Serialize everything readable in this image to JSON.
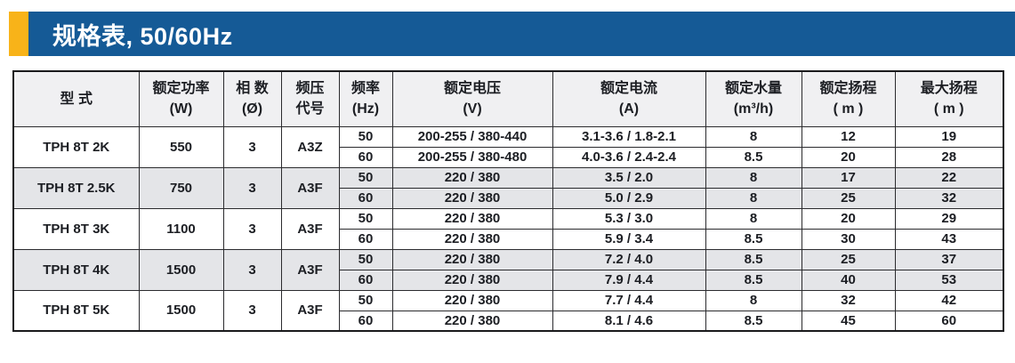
{
  "title_bar": {
    "title": "规格表, 50/60Hz"
  },
  "colors": {
    "bar_blue": "#155A96",
    "accent_yellow": "#F8B319",
    "header_bg": "#F0F0F2",
    "row_alt": "#E4E5E8",
    "border": "#2B2B2E",
    "border_outer": "#1A1A1C",
    "text": "#1C1E23"
  },
  "table": {
    "headers": [
      {
        "line1": "型 式",
        "line2": ""
      },
      {
        "line1": "额定功率",
        "line2": "(W)"
      },
      {
        "line1": "相 数",
        "line2": "(Ø)"
      },
      {
        "line1": "频压",
        "line2": "代号"
      },
      {
        "line1": "频率",
        "line2": "(Hz)"
      },
      {
        "line1": "额定电压",
        "line2": "(V)"
      },
      {
        "line1": "额定电流",
        "line2": "(A)"
      },
      {
        "line1": "额定水量",
        "line2": "(m³/h)"
      },
      {
        "line1": "额定扬程",
        "line2": "( m )"
      },
      {
        "line1": "最大扬程",
        "line2": "( m )"
      }
    ],
    "rows": [
      {
        "model": "TPH 8T 2K",
        "power": "550",
        "phases": "3",
        "code": "A3Z",
        "freqs": [
          {
            "hz": "50",
            "voltage": "200-255 / 380-440",
            "current": "3.1-3.6 / 1.8-2.1",
            "flow": "8",
            "head": "12",
            "max_head": "19"
          },
          {
            "hz": "60",
            "voltage": "200-255 / 380-480",
            "current": "4.0-3.6 / 2.4-2.4",
            "flow": "8.5",
            "head": "20",
            "max_head": "28"
          }
        ]
      },
      {
        "model": "TPH 8T 2.5K",
        "power": "750",
        "phases": "3",
        "code": "A3F",
        "freqs": [
          {
            "hz": "50",
            "voltage": "220 / 380",
            "current": "3.5 / 2.0",
            "flow": "8",
            "head": "17",
            "max_head": "22"
          },
          {
            "hz": "60",
            "voltage": "220 / 380",
            "current": "5.0 / 2.9",
            "flow": "8",
            "head": "25",
            "max_head": "32"
          }
        ]
      },
      {
        "model": "TPH 8T 3K",
        "power": "1100",
        "phases": "3",
        "code": "A3F",
        "freqs": [
          {
            "hz": "50",
            "voltage": "220 / 380",
            "current": "5.3 / 3.0",
            "flow": "8",
            "head": "20",
            "max_head": "29"
          },
          {
            "hz": "60",
            "voltage": "220 / 380",
            "current": "5.9 / 3.4",
            "flow": "8.5",
            "head": "30",
            "max_head": "43"
          }
        ]
      },
      {
        "model": "TPH 8T 4K",
        "power": "1500",
        "phases": "3",
        "code": "A3F",
        "freqs": [
          {
            "hz": "50",
            "voltage": "220 / 380",
            "current": "7.2 / 4.0",
            "flow": "8.5",
            "head": "25",
            "max_head": "37"
          },
          {
            "hz": "60",
            "voltage": "220 / 380",
            "current": "7.9 / 4.4",
            "flow": "8.5",
            "head": "40",
            "max_head": "53"
          }
        ]
      },
      {
        "model": "TPH 8T 5K",
        "power": "1500",
        "phases": "3",
        "code": "A3F",
        "freqs": [
          {
            "hz": "50",
            "voltage": "220 / 380",
            "current": "7.7 / 4.4",
            "flow": "8",
            "head": "32",
            "max_head": "42"
          },
          {
            "hz": "60",
            "voltage": "220 / 380",
            "current": "8.1 / 4.6",
            "flow": "8.5",
            "head": "45",
            "max_head": "60"
          }
        ]
      }
    ]
  }
}
